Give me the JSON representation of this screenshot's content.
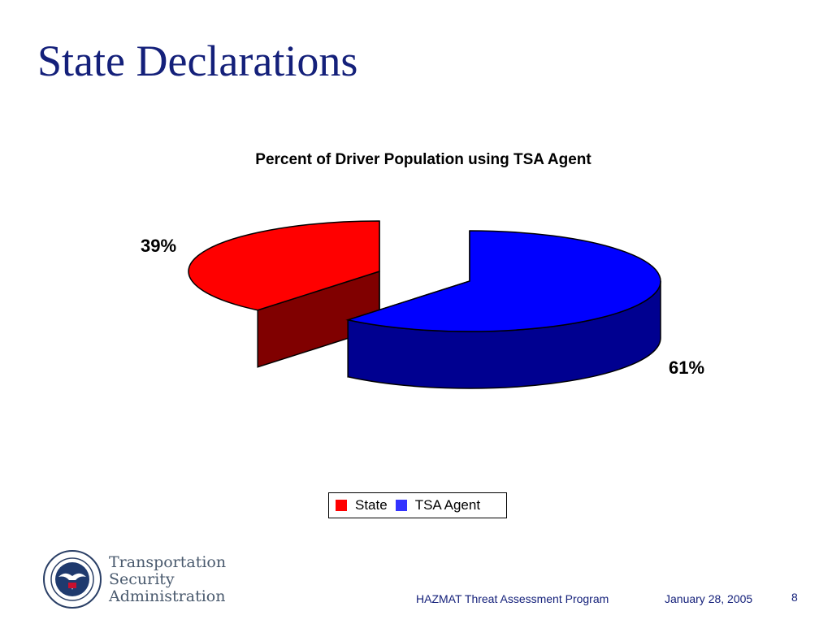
{
  "slide": {
    "title": "State Declarations",
    "footer_program": "HAZMAT Threat Assessment Program",
    "footer_date": "January 28, 2005",
    "page_number": "8"
  },
  "logo": {
    "line1": "Transportation",
    "line2": "Security",
    "line3": "Administration",
    "icon": "dhs-seal-icon"
  },
  "colors": {
    "title": "#14207a",
    "state": "#ff0000",
    "state_side": "#800000",
    "tsa": "#0000ff",
    "tsa_side": "#000090"
  },
  "chart_data": {
    "type": "pie",
    "title": "Percent of Driver Population using TSA Agent",
    "categories": [
      "State",
      "TSA Agent"
    ],
    "values": [
      39,
      61
    ],
    "data_labels": [
      "39%",
      "61%"
    ],
    "legend_position": "bottom",
    "style": "3d-exploded"
  }
}
